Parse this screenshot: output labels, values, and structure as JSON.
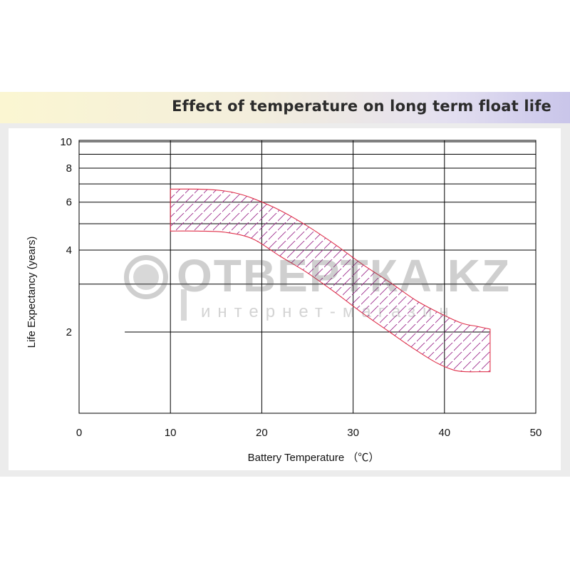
{
  "title": "Effect of temperature on long term float life",
  "watermark": {
    "brand": "ОТВЕРТКА.KZ",
    "subtitle": "интернет-магазин"
  },
  "colors": {
    "band_stroke": "#e0304a",
    "hatch": "#9b2a8c",
    "grid": "#000000"
  },
  "chart_data": {
    "type": "area",
    "title": "Effect of temperature on long term float life",
    "xlabel": "Battery Temperature （℃）",
    "ylabel": "Life Expectancy (years)",
    "xlim": [
      0,
      50
    ],
    "x_ticks": [
      0,
      10,
      20,
      30,
      40,
      50
    ],
    "y_scale": "log",
    "y_ticks": [
      2,
      4,
      6,
      8,
      10
    ],
    "y_gridlines": [
      1,
      2,
      3,
      4,
      5,
      6,
      7,
      8,
      9,
      10
    ],
    "grid": true,
    "reference_line": {
      "x_start": 5,
      "x_end": 45,
      "y": 2
    },
    "series": [
      {
        "name": "",
        "upper": {
          "x": [
            10,
            13,
            15,
            17,
            19,
            22,
            25,
            28,
            31,
            34,
            37,
            40,
            42,
            43.5,
            45
          ],
          "y": [
            6.7,
            6.7,
            6.65,
            6.5,
            6.2,
            5.6,
            4.9,
            4.2,
            3.55,
            3.05,
            2.6,
            2.3,
            2.15,
            2.1,
            2.05
          ]
        },
        "lower": {
          "x": [
            10,
            13,
            16,
            19,
            22,
            25,
            28,
            31,
            34,
            36.5,
            39,
            41,
            42.5,
            44,
            45
          ],
          "y": [
            4.7,
            4.7,
            4.65,
            4.4,
            3.8,
            3.3,
            2.8,
            2.35,
            2.0,
            1.75,
            1.55,
            1.45,
            1.43,
            1.43,
            1.43
          ]
        }
      }
    ]
  }
}
